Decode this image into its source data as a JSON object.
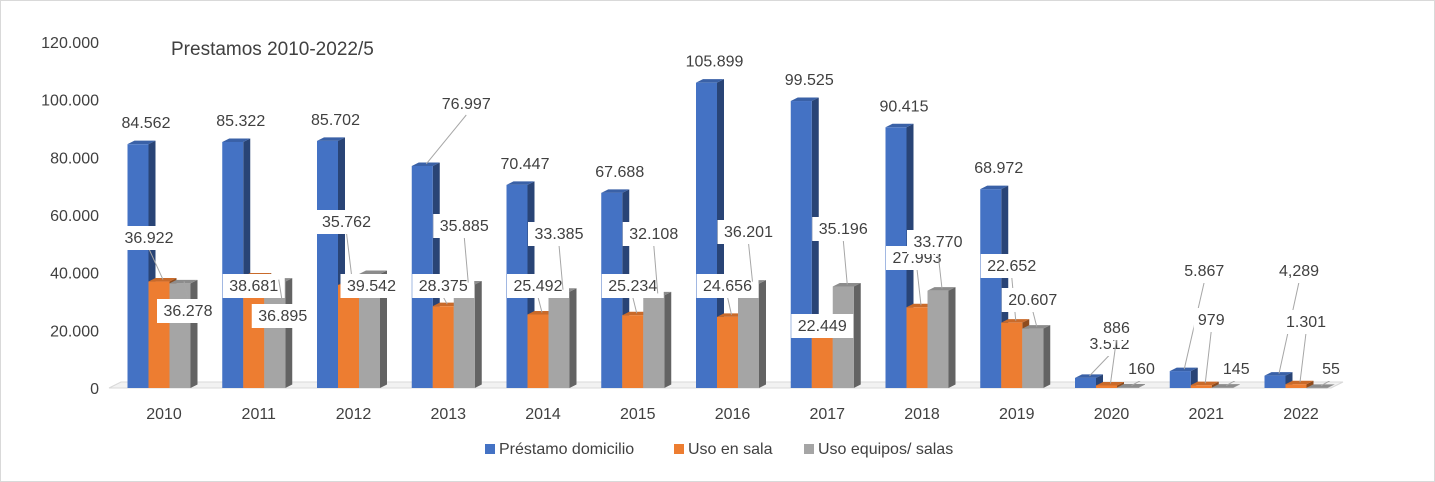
{
  "chart_data": {
    "type": "bar",
    "title": "Prestamos 2010-2022/5",
    "categories": [
      "2010",
      "2011",
      "2012",
      "2013",
      "2014",
      "2015",
      "2016",
      "2017",
      "2018",
      "2019",
      "2020",
      "2021",
      "2022"
    ],
    "series": [
      {
        "name": "Préstamo domicilio",
        "color": "#4472C4",
        "values": [
          84562,
          85322,
          85702,
          76997,
          70447,
          67688,
          105899,
          99525,
          90415,
          68972,
          3512,
          5867,
          4289
        ],
        "labels": [
          "84.562",
          "85.322",
          "85.702",
          "76.997",
          "70.447",
          "67.688",
          "105.899",
          "99.525",
          "90.415",
          "68.972",
          "3.512",
          "5.867",
          "4,289"
        ]
      },
      {
        "name": "Uso en sala",
        "color": "#ED7D31",
        "values": [
          36922,
          38681,
          35762,
          28375,
          25492,
          25234,
          24656,
          22449,
          27993,
          22652,
          886,
          979,
          1301
        ],
        "labels": [
          "36.922",
          "38.681",
          "35.762",
          "28.375",
          "25.492",
          "25.234",
          "24.656",
          "22.449",
          "27.993",
          "22.652",
          "886",
          "979",
          "1.301"
        ]
      },
      {
        "name": "Uso equipos/ salas",
        "color": "#A5A5A5",
        "values": [
          36278,
          36895,
          39542,
          35885,
          33385,
          32108,
          36201,
          35196,
          33770,
          20607,
          160,
          145,
          55
        ],
        "labels": [
          "36.278",
          "36.895",
          "39.542",
          "35.885",
          "33.385",
          "32.108",
          "36.201",
          "35.196",
          "33.770",
          "20.607",
          "160",
          "145",
          "55"
        ]
      }
    ],
    "yticks": [
      "0",
      "20.000",
      "40.000",
      "60.000",
      "80.000",
      "100.000",
      "120.000"
    ],
    "ylim": [
      0,
      120000
    ],
    "gridlines": false,
    "legend_position": "bottom"
  }
}
